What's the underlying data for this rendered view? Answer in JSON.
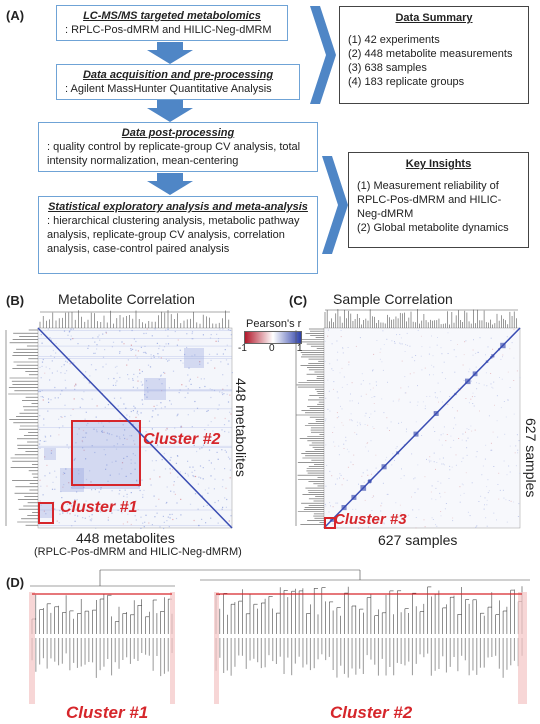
{
  "panel_a": {
    "label": "(A)",
    "steps": [
      {
        "title": "LC-MS/MS targeted metabolomics",
        "text": ": RPLC-Pos-dMRM and HILIC-Neg-dMRM"
      },
      {
        "title": "Data acquisition and pre-processing",
        "text": ": Agilent MassHunter Quantitative Analysis"
      },
      {
        "title": "Data post-processing",
        "text": ": quality control by replicate-group CV analysis, total intensity normalization, mean-centering"
      },
      {
        "title": "Statistical exploratory analysis and meta-analysis",
        "text": ": hierarchical clustering analysis, metabolic pathway analysis, replicate-group CV analysis, correlation analysis, case-control paired analysis"
      }
    ],
    "data_summary": {
      "title": "Data Summary",
      "items": [
        "(1) 42 experiments",
        "(2) 448 metabolite measurements",
        "(3) 638 samples",
        "(4) 183 replicate groups"
      ]
    },
    "key_insights": {
      "title": "Key Insights",
      "items": [
        "(1) Measurement reliability of RPLC-Pos-dMRM and HILIC-Neg-dMRM",
        "(2) Global metabolite dynamics"
      ]
    }
  },
  "panel_b": {
    "label": "(B)",
    "title": "Metabolite Correlation",
    "right_label": "448 metabolites",
    "bottom_label": "448 metabolites",
    "bottom_sub": "(RPLC-Pos-dMRM and HILIC-Neg-dMRM)",
    "cluster1": "Cluster #1",
    "cluster2": "Cluster #2"
  },
  "legend": {
    "title": "Pearson's r",
    "ticks": [
      "-1",
      "0",
      "1"
    ],
    "low_color": "#b2182b",
    "mid_color": "#ffffff",
    "high_color": "#2c3fa8"
  },
  "panel_c": {
    "label": "(C)",
    "title": "Sample Correlation",
    "right_label": "627 samples",
    "bottom_label": "627 samples",
    "cluster3": "Cluster #3"
  },
  "panel_d": {
    "label": "(D)",
    "cluster1": "Cluster #1",
    "cluster2": "Cluster #2"
  },
  "colors": {
    "flow_border": "#6fa3d6",
    "arrow": "#4f86c6",
    "cluster_red": "#d6262b"
  }
}
